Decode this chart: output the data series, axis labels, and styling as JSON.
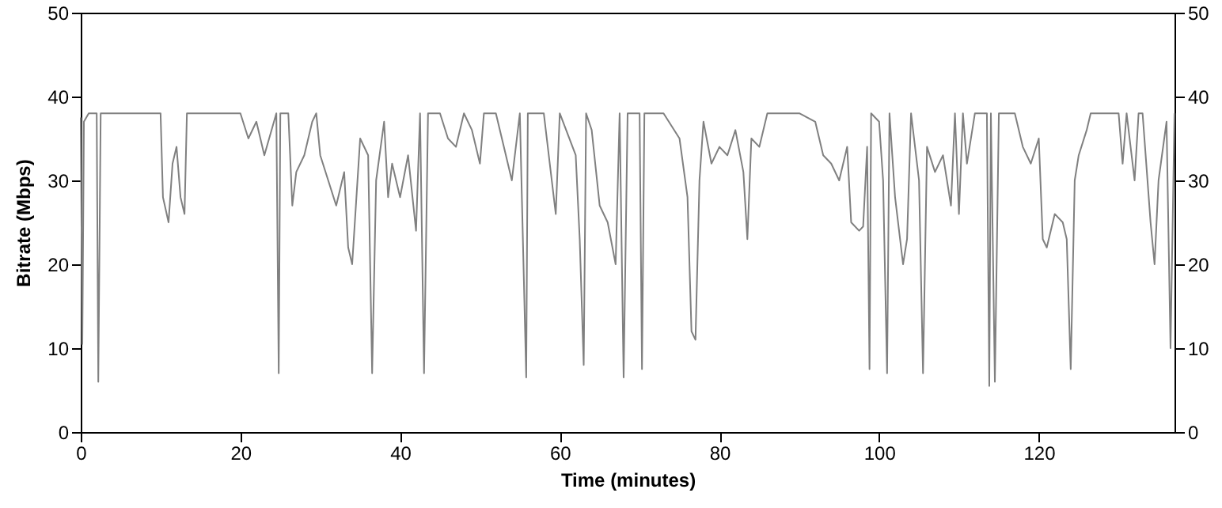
{
  "chart_data": {
    "type": "line",
    "xlabel": "Time (minutes)",
    "ylabel": "Bitrate (Mbps)",
    "xlim": [
      0,
      137
    ],
    "xticks": [
      0,
      20,
      40,
      60,
      80,
      100,
      120
    ],
    "ylim": [
      0,
      50
    ],
    "yticks": [
      0,
      10,
      20,
      30,
      40,
      50
    ],
    "y2lim": [
      0,
      50
    ],
    "y2ticks": [
      0,
      10,
      20,
      30,
      40,
      50
    ],
    "grid": false,
    "series": [
      {
        "color": "#808080",
        "x": [
          0,
          0.2,
          0.4,
          1,
          2,
          2.2,
          2.5,
          10,
          10.3,
          11,
          11.5,
          12,
          12.5,
          13,
          13.3,
          20,
          21,
          22,
          23,
          24.5,
          24.8,
          25,
          26,
          26.5,
          27,
          28,
          29,
          29.5,
          30,
          31,
          32,
          33,
          33.5,
          34,
          35,
          36,
          36.5,
          37,
          38,
          38.5,
          39,
          40,
          41,
          42,
          42.5,
          43,
          43.5,
          45,
          46,
          47,
          48,
          49,
          50,
          50.5,
          52,
          53,
          54,
          55,
          55.8,
          56,
          58,
          59,
          59.5,
          60,
          62,
          62.5,
          63,
          63.3,
          64,
          65,
          66,
          67,
          67.5,
          68,
          68.5,
          70,
          70.3,
          70.6,
          73,
          75,
          76,
          76.5,
          77,
          77.5,
          78,
          79,
          80,
          81,
          82,
          83,
          83.5,
          84,
          85,
          86,
          90,
          92,
          93,
          94,
          95,
          96,
          96.5,
          97.5,
          98,
          98.5,
          98.8,
          99,
          100,
          100.5,
          101,
          101.3,
          102,
          103,
          103.5,
          104,
          105,
          105.5,
          106,
          107,
          108,
          109,
          109.5,
          110,
          110.5,
          111,
          112,
          113.5,
          113.8,
          114,
          114.5,
          115,
          117,
          118,
          119,
          120,
          120.5,
          121,
          122,
          123,
          123.5,
          124,
          124.5,
          125,
          126,
          126.5,
          130,
          130.5,
          131,
          132,
          132.5,
          133,
          134,
          134.5,
          135,
          136,
          136.5,
          137
        ],
        "values": [
          37.5,
          10.5,
          37,
          38,
          38,
          6,
          38,
          38,
          28,
          25,
          32,
          34,
          28,
          26,
          38,
          38,
          35,
          37,
          33,
          38,
          7,
          38,
          38,
          27,
          31,
          33,
          37,
          38,
          33,
          30,
          27,
          31,
          22,
          20,
          35,
          33,
          7,
          30,
          37,
          28,
          32,
          28,
          33,
          24,
          38,
          7,
          38,
          38,
          35,
          34,
          38,
          36,
          32,
          38,
          38,
          34,
          30,
          38,
          6.5,
          38,
          38,
          30,
          26,
          38,
          33,
          23,
          8,
          38,
          36,
          27,
          25,
          20,
          38,
          6.5,
          38,
          38,
          7.5,
          38,
          38,
          35,
          28,
          12,
          11,
          30,
          37,
          32,
          34,
          33,
          36,
          31,
          23,
          35,
          34,
          38,
          38,
          37,
          33,
          32,
          30,
          34,
          25,
          24,
          24.5,
          34,
          7.5,
          38,
          37,
          30,
          7,
          38,
          28,
          20,
          23,
          38,
          30,
          7,
          34,
          31,
          33,
          27,
          38,
          26,
          38,
          32,
          38,
          38,
          5.5,
          38,
          6,
          38,
          38,
          34,
          32,
          35,
          23,
          22,
          26,
          25,
          23,
          7.5,
          30,
          33,
          36,
          38,
          38,
          32,
          38,
          30,
          38,
          38,
          25,
          20,
          30,
          37,
          10,
          38
        ]
      }
    ]
  }
}
